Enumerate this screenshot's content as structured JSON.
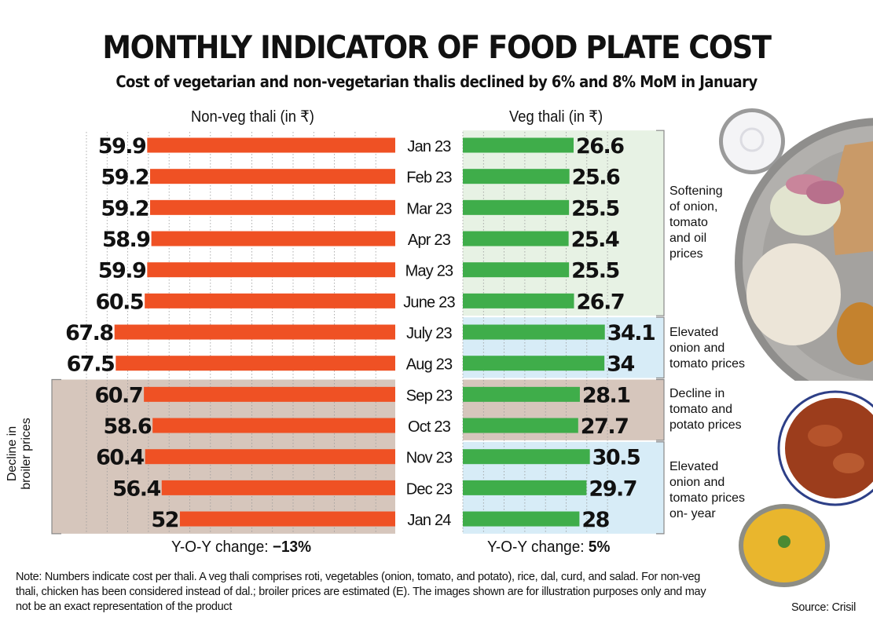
{
  "header": {
    "title": "MONTHLY INDICATOR OF FOOD PLATE COST",
    "subtitle": "Cost of vegetarian and non-vegetarian thalis declined by 6% and 8% MoM in January"
  },
  "chart_data": {
    "type": "bar",
    "orientation": "horizontal",
    "title": "MONTHLY INDICATOR OF FOOD PLATE COST",
    "subtitle": "Cost of vegetarian and non-vegetarian thalis declined by 6% and 8% MoM in January",
    "categories": [
      "Jan 23",
      "Feb 23",
      "Mar 23",
      "Apr 23",
      "May 23",
      "June 23",
      "July 23",
      "Aug 23",
      "Sep 23",
      "Oct 23",
      "Nov 23",
      "Dec 23",
      "Jan 24"
    ],
    "series": [
      {
        "name": "Non-veg thali (in ₹)",
        "color": "#ef5124",
        "direction": "left",
        "values": [
          59.9,
          59.2,
          59.2,
          58.9,
          59.9,
          60.5,
          67.8,
          67.5,
          60.7,
          58.6,
          60.4,
          56.4,
          52
        ],
        "labels": [
          "59.9",
          "59.2",
          "59.2",
          "58.9",
          "59.9",
          "60.5",
          "67.8",
          "67.5",
          "60.7",
          "58.6",
          "60.4",
          "56.4",
          "52"
        ],
        "yoy_label": "Y-O-Y change:",
        "yoy_value": "−13%"
      },
      {
        "name": "Veg thali (in ₹)",
        "color": "#3fad4a",
        "direction": "right",
        "values": [
          26.6,
          25.6,
          25.5,
          25.4,
          25.5,
          26.7,
          34.1,
          34,
          28.1,
          27.7,
          30.5,
          29.7,
          28
        ],
        "labels": [
          "26.6",
          "25.6",
          "25.5",
          "25.4",
          "25.5",
          "26.7",
          "34.1",
          "34",
          "28.1",
          "27.7",
          "30.5",
          "29.7",
          "28"
        ],
        "yoy_label": "Y-O-Y change:",
        "yoy_value": "5%"
      }
    ],
    "xlabel": "",
    "ylabel": "",
    "grid": true,
    "legend": "none",
    "annotations": [
      {
        "series": "Veg thali (in ₹)",
        "from": "Jan 23",
        "to": "June 23",
        "text": "Softening of onion, tomato and oil prices",
        "color": "#e7f2e4"
      },
      {
        "series": "Veg thali (in ₹)",
        "from": "July 23",
        "to": "Aug 23",
        "text": "Elevated onion and tomato prices",
        "color": "#d7ecf7"
      },
      {
        "series": "Veg thali (in ₹)",
        "from": "Sep 23",
        "to": "Oct 23",
        "text": "Decline in tomato and potato prices",
        "color": "#d6c6bc"
      },
      {
        "series": "Veg thali (in ₹)",
        "from": "Nov 23",
        "to": "Jan 24",
        "text": "Elevated onion and tomato prices on- year",
        "color": "#d7ecf7"
      },
      {
        "series": "Non-veg thali (in ₹)",
        "from": "Sep 23",
        "to": "Jan 24",
        "text": "Decline in broiler prices",
        "color": "#d6c6bc"
      }
    ]
  },
  "annotations_text": {
    "veg_1": [
      "Softening",
      "of onion,",
      "tomato",
      "and oil",
      "prices"
    ],
    "veg_2": [
      "Elevated",
      "onion and",
      "tomato prices"
    ],
    "veg_3": [
      "Decline in",
      "tomato and",
      "potato prices"
    ],
    "veg_4": [
      "Elevated",
      "onion and",
      "tomato prices",
      "on- year"
    ],
    "nonveg_1": [
      "Decline in",
      "broiler prices"
    ]
  },
  "footer": {
    "note": "Note: Numbers indicate cost per thali. A veg thali comprises roti, vegetables (onion, tomato, and potato), rice, dal, curd, and salad. For non-veg thali, chicken has been considered instead of dal.; broiler prices are estimated (E). The images shown are for illustration purposes only and may not be an exact representation of the product",
    "source": "Source: Crisil"
  },
  "images": {
    "curd_bowl": "curd bowl illustration",
    "thali_plate": "thali plate with roti, rice, salad and potato sabzi",
    "chicken_curry": "chicken curry bowl",
    "dal_bowl": "dal bowl"
  }
}
